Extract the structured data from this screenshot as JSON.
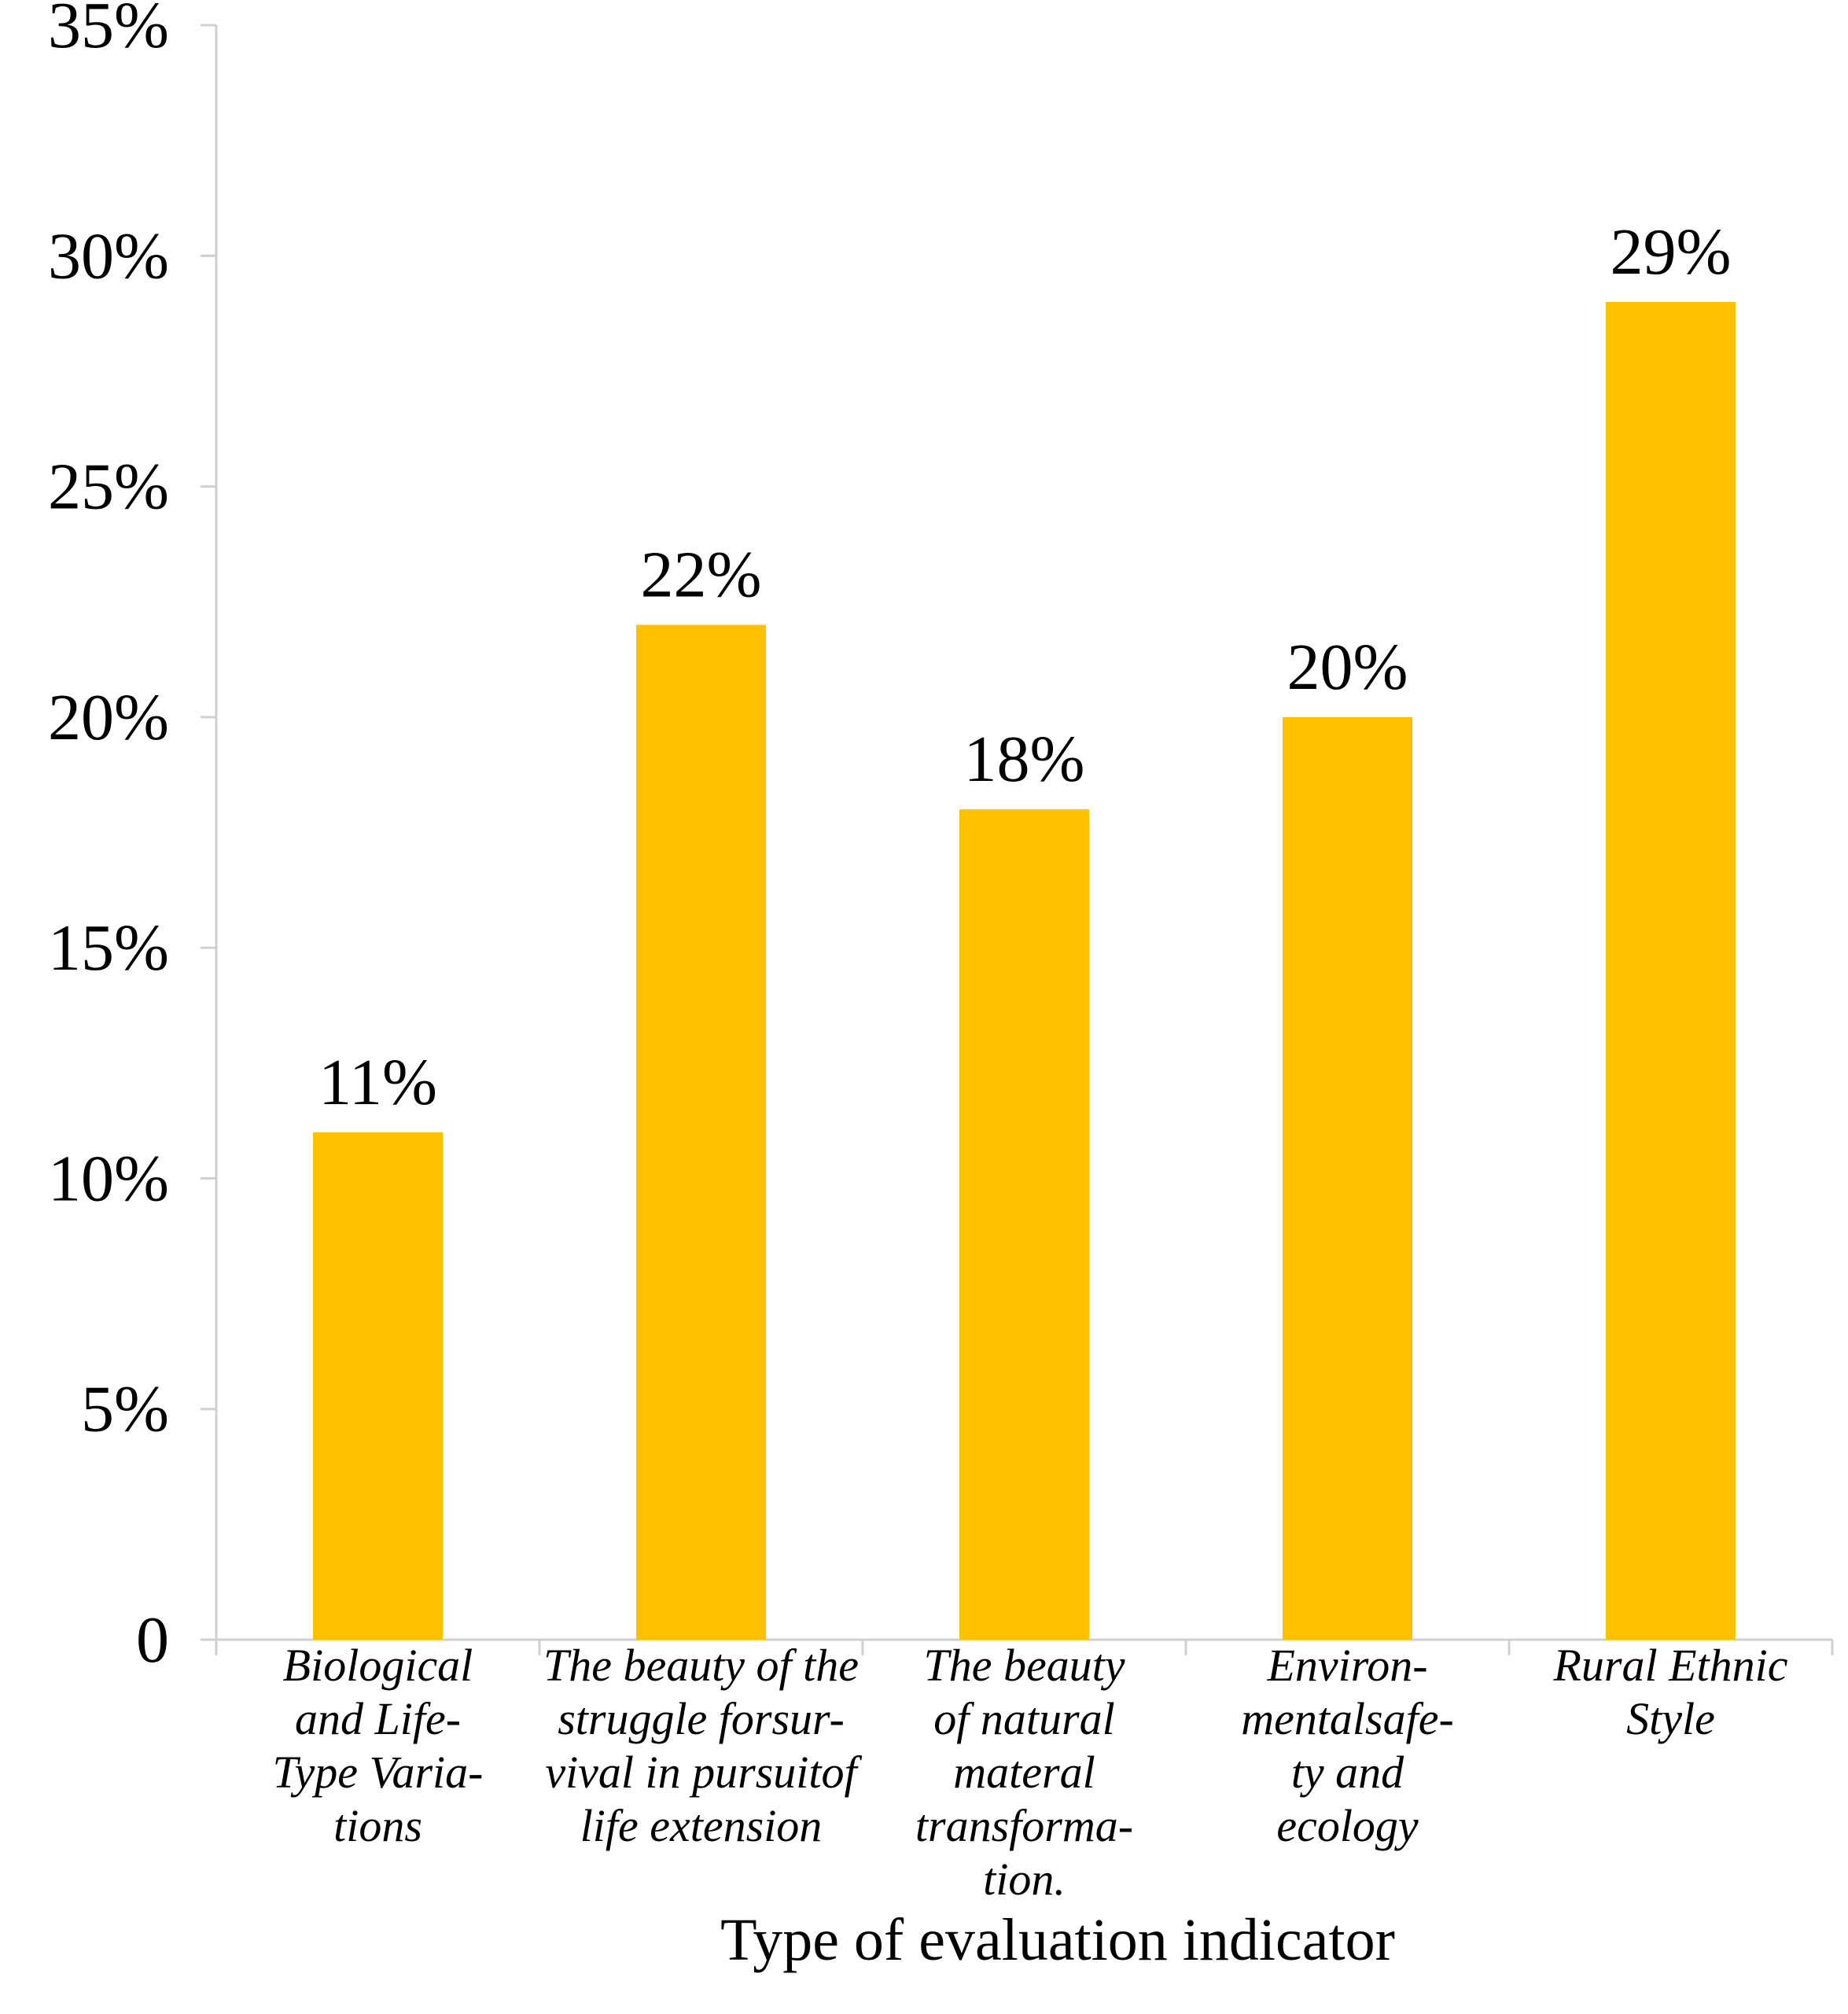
{
  "chart_data": {
    "type": "bar",
    "categories": [
      [
        "Biological",
        "and Life-",
        "Type Varia-",
        "tions"
      ],
      [
        "The beauty of the",
        "struggle forsur-",
        "vival in pursuitof",
        "life extension"
      ],
      [
        "The beauty",
        "of natural",
        "materal",
        "transforma-",
        "tion."
      ],
      [
        "Environ-",
        "mentalsafe-",
        "ty and",
        "ecology"
      ],
      [
        "Rural Ethnic",
        "Style"
      ]
    ],
    "values": [
      11,
      22,
      18,
      20,
      29
    ],
    "value_labels": [
      "11%",
      "22%",
      "18%",
      "20%",
      "29%"
    ],
    "yticks": [
      0,
      5,
      10,
      15,
      20,
      25,
      30,
      35
    ],
    "ytick_labels": [
      "0",
      "5%",
      "10%",
      "15%",
      "20%",
      "25%",
      "30%",
      "35%"
    ],
    "ylim": [
      0,
      35
    ],
    "xlabel": "Type of evaluation indicator",
    "ylabel": "",
    "title": "",
    "bar_color": "#FFC000",
    "grid": false
  }
}
